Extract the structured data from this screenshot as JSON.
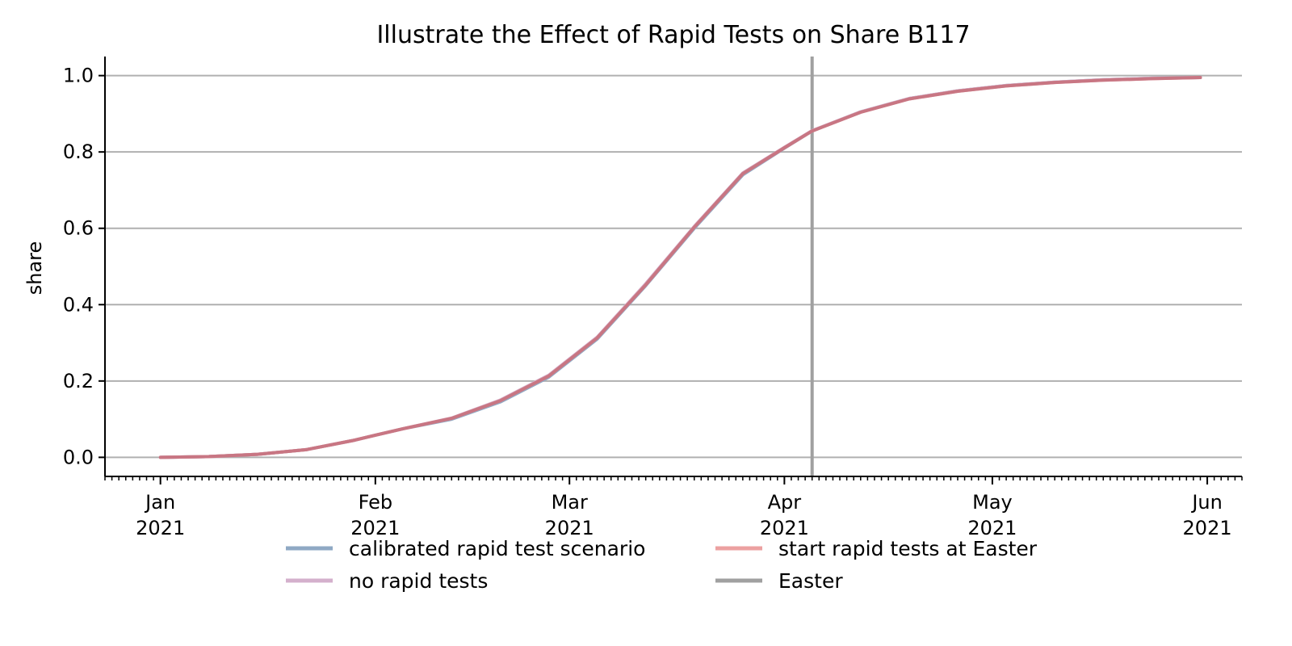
{
  "chart_data": {
    "type": "line",
    "title": "Illustrate the Effect of Rapid Tests on Share B117",
    "xlabel": "",
    "ylabel": "share",
    "xlim": [
      "2020-12-24",
      "2021-06-06"
    ],
    "ylim": [
      -0.05,
      1.05
    ],
    "grid": "horizontal",
    "legend_placement": "bottom-center",
    "x_ticks": [
      {
        "date": "2021-01-01",
        "month": "Jan",
        "year": "2021"
      },
      {
        "date": "2021-02-01",
        "month": "Feb",
        "year": "2021"
      },
      {
        "date": "2021-03-01",
        "month": "Mar",
        "year": "2021"
      },
      {
        "date": "2021-04-01",
        "month": "Apr",
        "year": "2021"
      },
      {
        "date": "2021-05-01",
        "month": "May",
        "year": "2021"
      },
      {
        "date": "2021-06-01",
        "month": "Jun",
        "year": "2021"
      }
    ],
    "y_ticks": [
      "0.0",
      "0.2",
      "0.4",
      "0.6",
      "0.8",
      "1.0"
    ],
    "x": [
      "2021-01-01",
      "2021-01-08",
      "2021-01-15",
      "2021-01-22",
      "2021-01-29",
      "2021-02-01",
      "2021-02-05",
      "2021-02-12",
      "2021-02-19",
      "2021-02-26",
      "2021-03-05",
      "2021-03-12",
      "2021-03-19",
      "2021-03-26",
      "2021-04-01",
      "2021-04-05",
      "2021-04-12",
      "2021-04-19",
      "2021-04-26",
      "2021-05-03",
      "2021-05-10",
      "2021-05-17",
      "2021-05-24",
      "2021-05-31"
    ],
    "series": [
      {
        "name": "calibrated rapid test scenario",
        "color": "#8fa9c4",
        "width": 4,
        "values": [
          0.0,
          0.002,
          0.008,
          0.02,
          0.045,
          0.058,
          0.075,
          0.1,
          0.145,
          0.21,
          0.31,
          0.45,
          0.6,
          0.74,
          0.81,
          0.855,
          0.905,
          0.94,
          0.96,
          0.974,
          0.983,
          0.989,
          0.993,
          0.995
        ]
      },
      {
        "name": "no rapid tests",
        "color": "#d4b0cc",
        "width": 4,
        "values": [
          0.0,
          0.002,
          0.008,
          0.02,
          0.045,
          0.058,
          0.075,
          0.103,
          0.15,
          0.215,
          0.315,
          0.455,
          0.605,
          0.745,
          0.812,
          0.856,
          0.905,
          0.94,
          0.96,
          0.974,
          0.983,
          0.989,
          0.993,
          0.995
        ]
      },
      {
        "name": "start rapid tests at Easter",
        "color": "#eca1a1",
        "width": 4,
        "values": [
          0.0,
          0.002,
          0.008,
          0.02,
          0.045,
          0.058,
          0.075,
          0.102,
          0.148,
          0.213,
          0.313,
          0.452,
          0.603,
          0.743,
          0.811,
          0.855,
          0.904,
          0.939,
          0.959,
          0.973,
          0.982,
          0.988,
          0.992,
          0.995
        ]
      }
    ],
    "overlay_line_color": "#c4717f",
    "vline": {
      "name": "Easter",
      "date": "2021-04-05",
      "color": "#a0a0a0"
    },
    "legend": [
      {
        "label": "calibrated rapid test scenario",
        "color": "#8fa9c4"
      },
      {
        "label": "start rapid tests at Easter",
        "color": "#eca1a1"
      },
      {
        "label": "no rapid tests",
        "color": "#d4b0cc"
      },
      {
        "label": "Easter",
        "color": "#a0a0a0"
      }
    ]
  }
}
